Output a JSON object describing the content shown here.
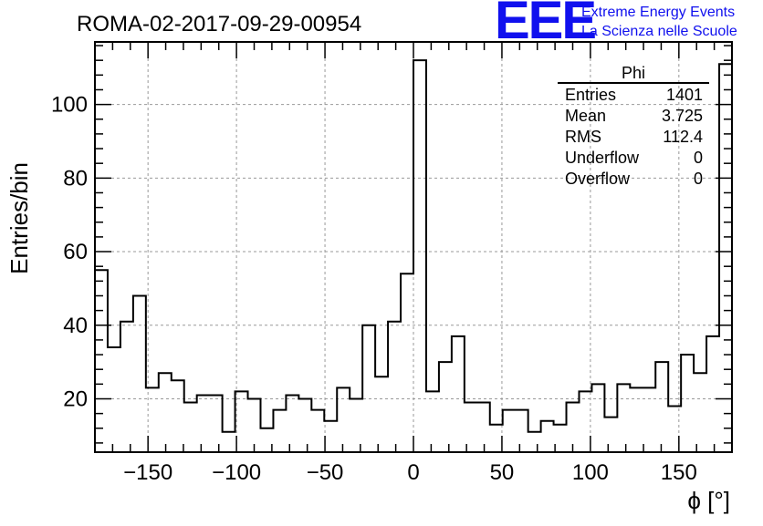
{
  "title": "ROMA-02-2017-09-29-00954",
  "logo": {
    "mark": "EEE",
    "line1": "Extreme Energy Events",
    "line2": "La Scienza nelle Scuole",
    "color": "#1010ee"
  },
  "stats": {
    "name": "Phi",
    "rows": [
      {
        "label": "Entries",
        "value": "1401"
      },
      {
        "label": "Mean",
        "value": "3.725"
      },
      {
        "label": "RMS",
        "value": "112.4"
      },
      {
        "label": "Underflow",
        "value": "0"
      },
      {
        "label": "Overflow",
        "value": "0"
      }
    ]
  },
  "chart_data": {
    "type": "histogram",
    "xlabel": "ϕ [°]",
    "ylabel": "Entries/bin",
    "xlim": [
      -180,
      180
    ],
    "ylim": [
      5.5,
      117
    ],
    "bin_width": 7.2,
    "values": [
      55,
      34,
      41,
      48,
      23,
      27,
      25,
      19,
      21,
      21,
      11,
      22,
      20,
      12,
      17,
      21,
      20,
      17,
      14,
      23,
      20,
      40,
      26,
      41,
      54,
      112,
      22,
      30,
      37,
      19,
      19,
      13,
      17,
      17,
      11,
      14,
      13,
      19,
      22,
      24,
      15,
      24,
      23,
      23,
      30,
      18,
      32,
      27,
      37,
      111
    ],
    "x_ticks_major": [
      -150,
      -100,
      -50,
      0,
      50,
      100,
      150
    ],
    "x_tick_labels": [
      "−150",
      "−100",
      "−50",
      "0",
      "50",
      "100",
      "150"
    ],
    "y_ticks_major": [
      20,
      40,
      60,
      80,
      100
    ],
    "y_tick_labels": [
      "20",
      "40",
      "60",
      "80",
      "100"
    ],
    "grid": true,
    "line_color": "#000000"
  }
}
